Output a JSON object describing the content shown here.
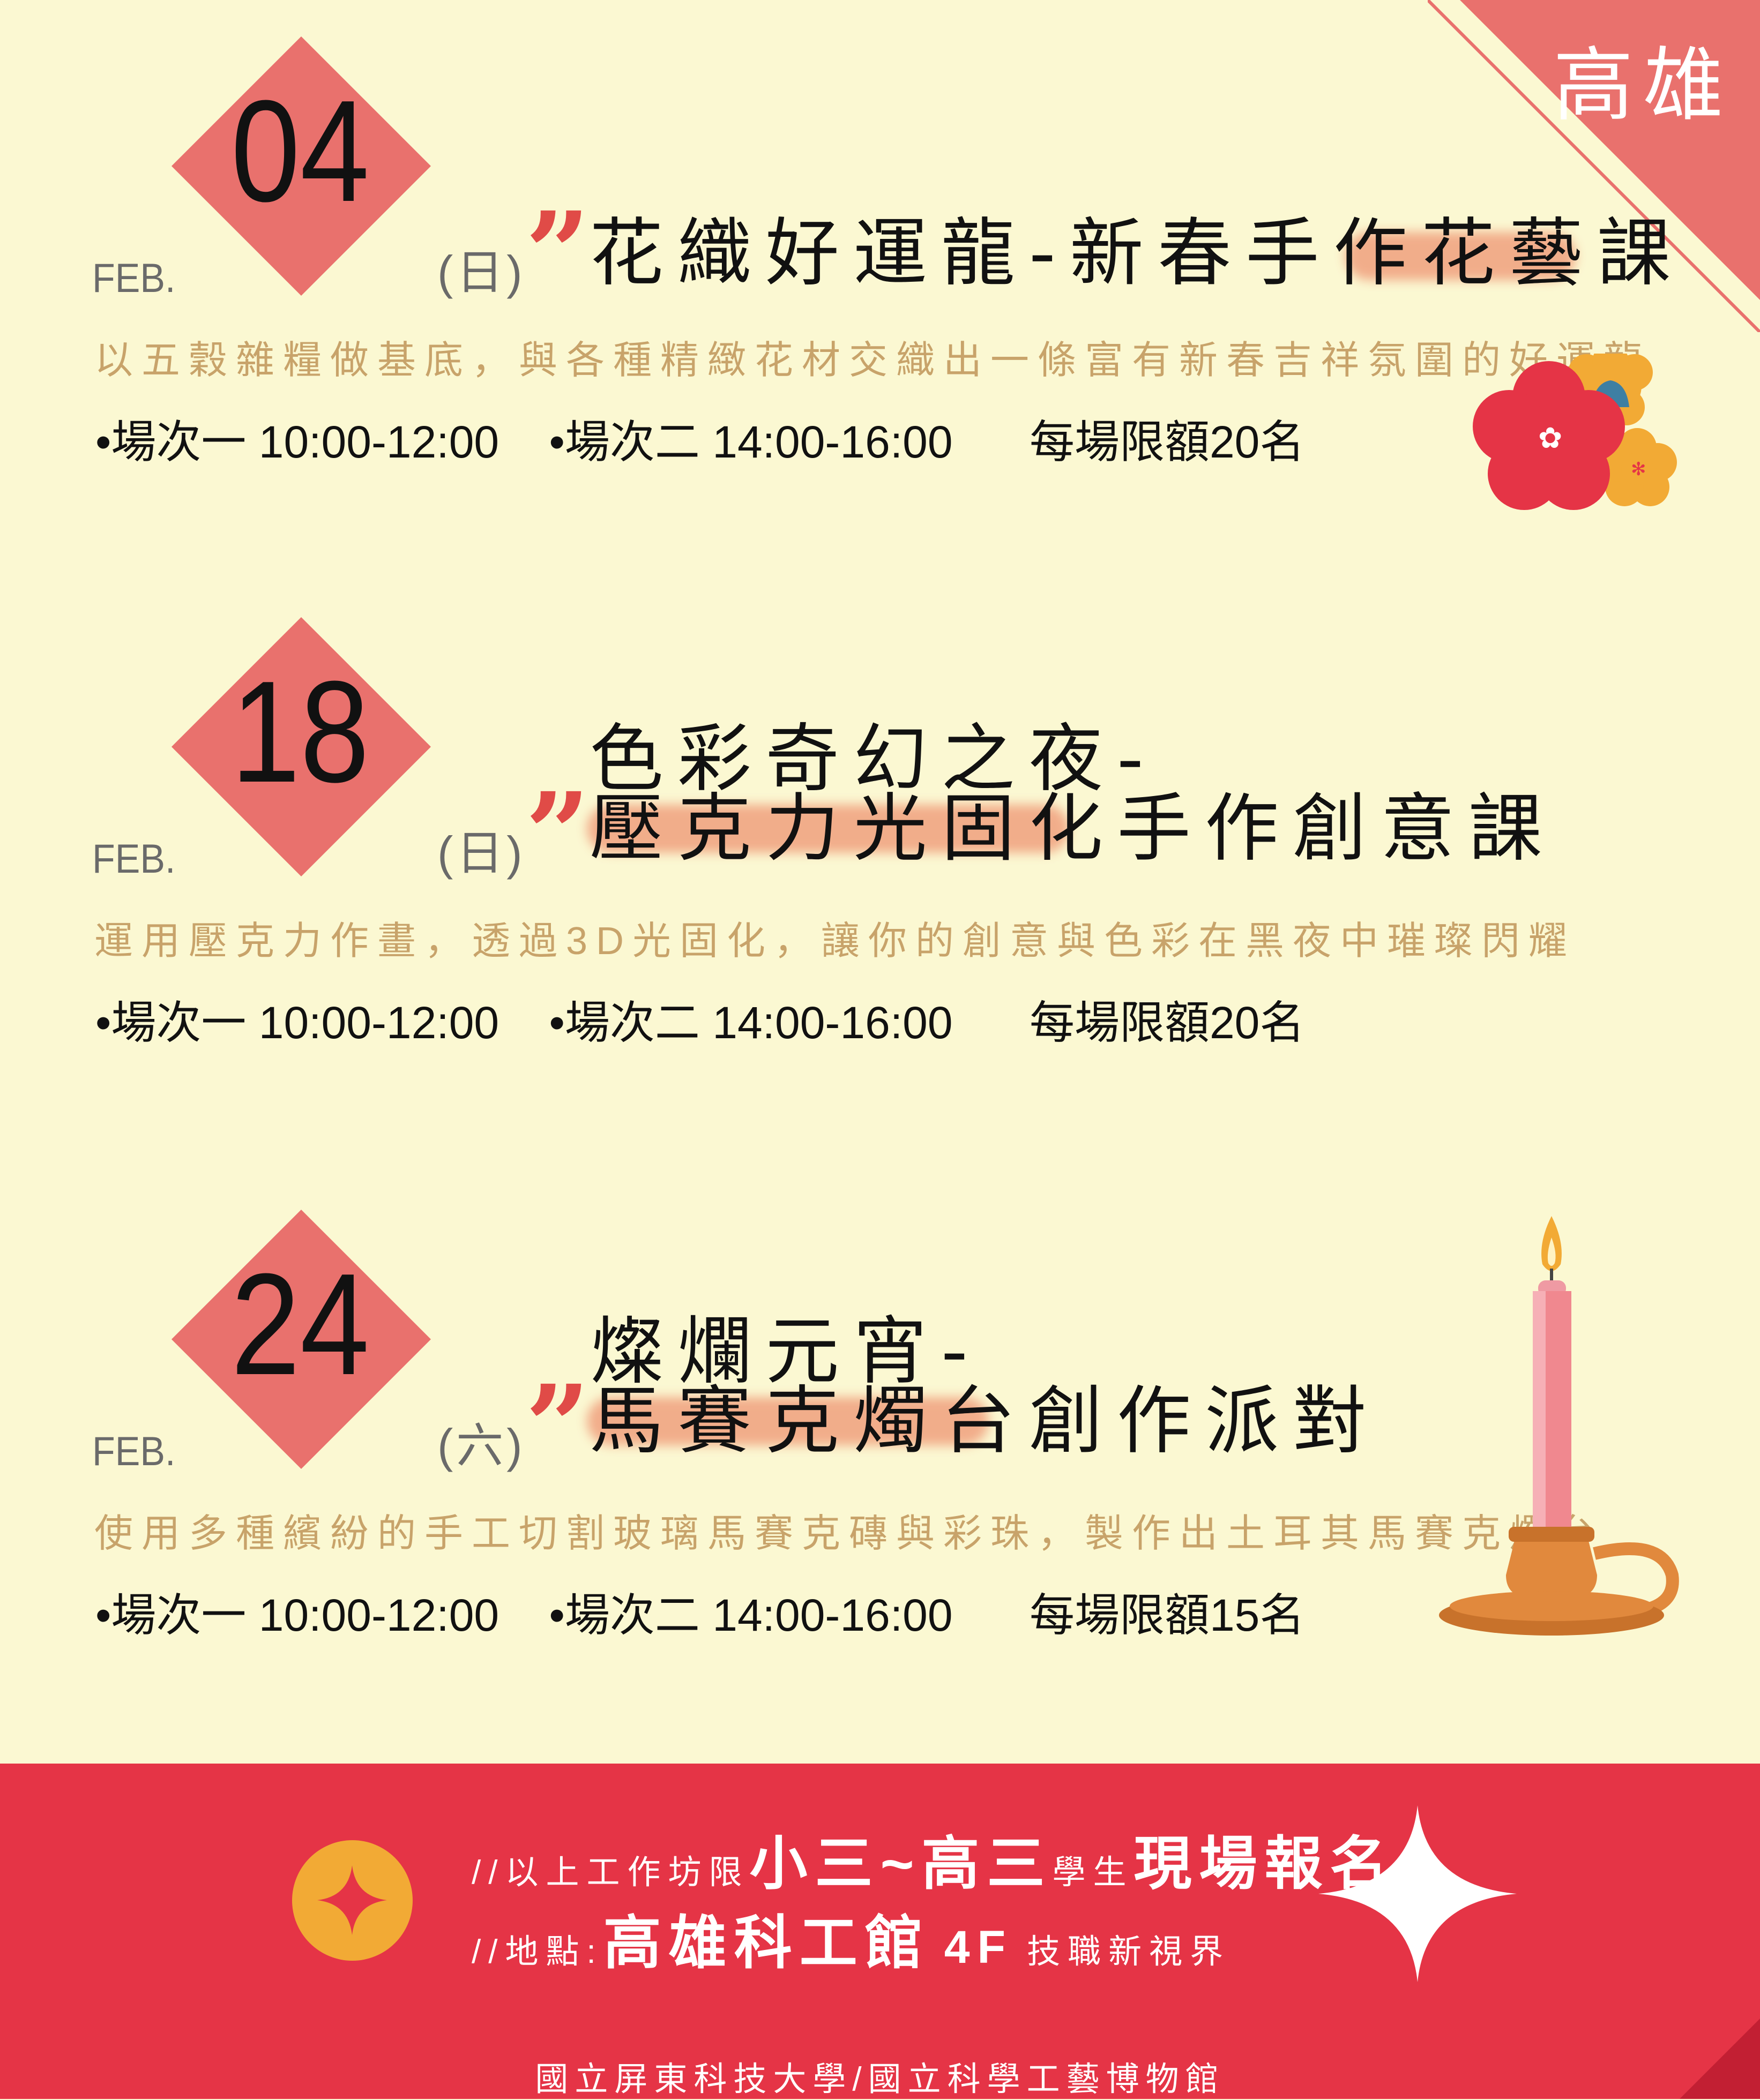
{
  "corner": {
    "city": "高雄"
  },
  "events": [
    {
      "day": "04",
      "month": "FEB.",
      "weekday": "(日)",
      "title_line1": "花織好運龍-新春手作花藝課",
      "title_line2": "",
      "description": "以五穀雜糧做基底，與各種精緻花材交織出一條富有新春吉祥氛圍的好運龍",
      "session1": "•場次一 10:00-12:00",
      "session2": "•場次二 14:00-16:00",
      "limit": "每場限額20名"
    },
    {
      "day": "18",
      "month": "FEB.",
      "weekday": "(日)",
      "title_line1": "色彩奇幻之夜-",
      "title_line2": "壓克力光固化手作創意課",
      "description": "運用壓克力作畫，透過3D光固化，讓你的創意與色彩在黑夜中璀璨閃耀",
      "session1": "•場次一 10:00-12:00",
      "session2": "•場次二 14:00-16:00",
      "limit": "每場限額20名"
    },
    {
      "day": "24",
      "month": "FEB.",
      "weekday": "(六)",
      "title_line1": "燦爛元宵-",
      "title_line2": "馬賽克燭台創作派對",
      "description": "使用多種繽紛的手工切割玻璃馬賽克磚與彩珠，製作出土耳其馬賽克燭台",
      "session1": "•場次一 10:00-12:00",
      "session2": "•場次二 14:00-16:00",
      "limit": "每場限額15名"
    }
  ],
  "banner": {
    "line1_prefix": "//以上工作坊限",
    "line1_grades": "小三~高三",
    "line1_students": "學生",
    "line1_walkin": "現場報名",
    "line2_prefix": "//地點:",
    "line2_venue": "高雄科工館",
    "line2_floor": "4F",
    "line2_hall": "技職新視界"
  },
  "footer": {
    "organizers": "國立屏東科技大學/國立科學工藝博物館"
  },
  "colors": {
    "background": "#fbf8d2",
    "diamond": "#e9716d",
    "banner": "#e53446",
    "accent": "#f2aa35"
  }
}
